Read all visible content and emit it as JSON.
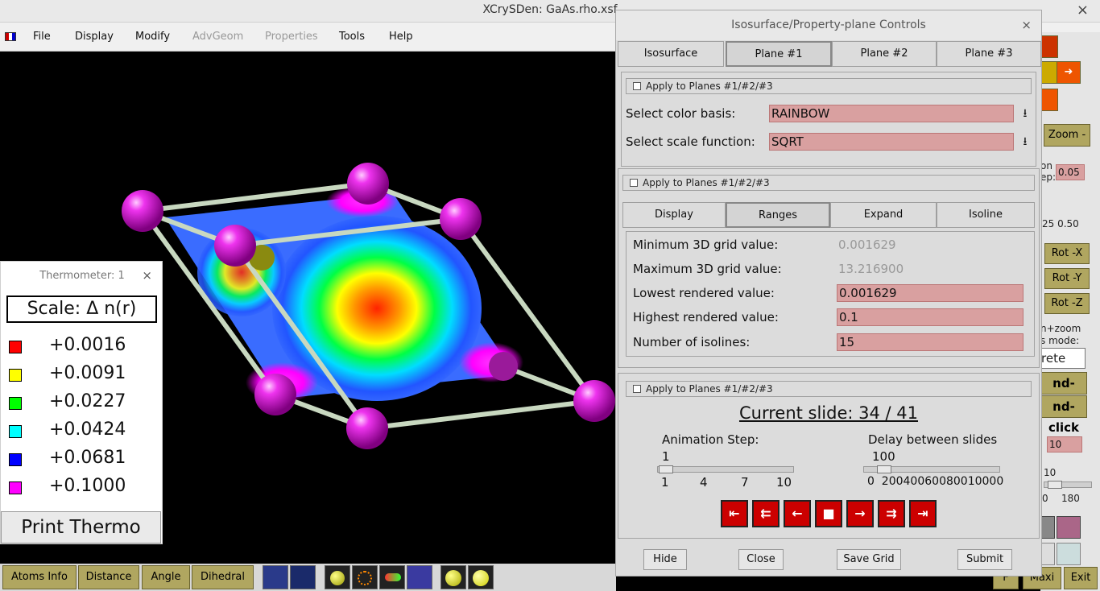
{
  "window": {
    "title": "XCrySDen: GaAs.rho.xsf",
    "close": "×"
  },
  "menu": [
    "File",
    "Display",
    "Modify",
    "AdvGeom",
    "Properties",
    "Tools",
    "Help"
  ],
  "thermometer": {
    "title": "Thermometer: 1",
    "close": "×",
    "scale": "Scale:   Δ n(r)",
    "entries": [
      {
        "value": "+0.0016",
        "color": "#ff0000"
      },
      {
        "value": "+0.0091",
        "color": "#ffff00"
      },
      {
        "value": "+0.0227",
        "color": "#00ff00"
      },
      {
        "value": "+0.0424",
        "color": "#00ffff"
      },
      {
        "value": "+0.0681",
        "color": "#0000ff"
      },
      {
        "value": "+0.1000",
        "color": "#ff00ff"
      }
    ],
    "print_button": "Print Thermo"
  },
  "bottom_toolbar": [
    "Atoms Info",
    "Distance",
    "Angle",
    "Dihedral"
  ],
  "right_strip": {
    "zoom": "Zoom -",
    "rotation_step_label": "on\nep:",
    "rotation_step": "0.05",
    "ticks": "25 0.50",
    "rot_x": "Rot -X",
    "rot_y": "Rot -Y",
    "rot_z": "Rot -Z",
    "mode_label": "n+zoom\ns mode:",
    "mode_value": "rete",
    "hold": "nd-hold",
    "click": "nd-click",
    "value_10": "10",
    "label_10": "10",
    "tick_0": "0",
    "tick_180": "180",
    "f": "F",
    "maxi": "Maxi",
    "exit": "Exit"
  },
  "dialog": {
    "title": "Isosurface/Property-plane Controls",
    "close": "×",
    "tabs": [
      "Isosurface",
      "Plane #1",
      "Plane #2",
      "Plane #3"
    ],
    "apply_label": "Apply to Planes #1/#2/#3",
    "color_basis_label": "Select color basis:",
    "color_basis": "RAINBOW",
    "scale_function_label": "Select scale function:",
    "scale_function": "SQRT",
    "subtabs": [
      "Display",
      "Ranges",
      "Expand",
      "Isoline"
    ],
    "ranges": {
      "min_label": "Minimum 3D grid value:",
      "min": "0.001629",
      "max_label": "Maximum 3D grid value:",
      "max": "13.216900",
      "low_label": "Lowest rendered value:",
      "low": "0.001629",
      "high_label": "Highest rendered value:",
      "high": "0.1",
      "iso_label": "Number of isolines:",
      "iso": "15"
    },
    "slide": "Current slide:  34 / 41",
    "anim_step_label": "Animation Step:",
    "anim_step": "1",
    "anim_ticks": [
      "1",
      "4",
      "7",
      "10"
    ],
    "delay_label": "Delay between slides",
    "delay": "100",
    "delay_ticks": "0  20040060080010000",
    "buttons": [
      "Hide",
      "Close",
      "Save Grid",
      "Submit"
    ]
  }
}
